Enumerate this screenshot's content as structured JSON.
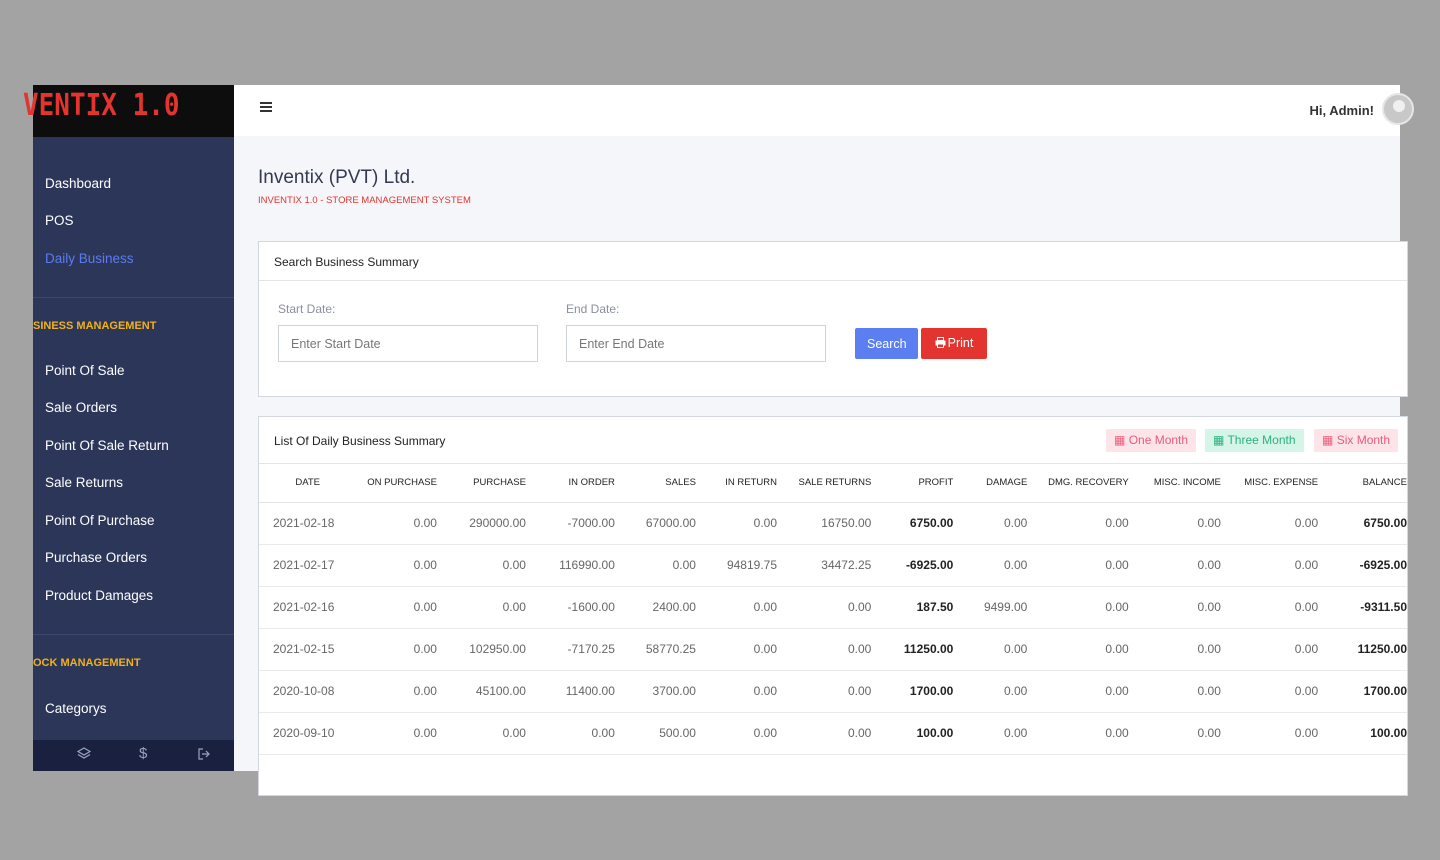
{
  "brand": "VENTIX 1.0",
  "sidebar": {
    "items": [
      {
        "label": "Dashboard"
      },
      {
        "label": "POS"
      },
      {
        "label": "Daily Business"
      }
    ],
    "section1": "SINESS MANAGEMENT",
    "business_items": [
      {
        "label": "Point Of Sale"
      },
      {
        "label": "Sale Orders"
      },
      {
        "label": "Point Of Sale Return"
      },
      {
        "label": "Sale Returns"
      },
      {
        "label": "Point Of Purchase"
      },
      {
        "label": "Purchase Orders"
      },
      {
        "label": "Product Damages"
      }
    ],
    "section2": "OCK MANAGEMENT",
    "stock_items": [
      {
        "label": "Categorys"
      }
    ],
    "footer_icons": [
      "layers-icon",
      "dollar-icon",
      "logout-icon"
    ]
  },
  "topbar": {
    "greeting": "Hi, Admin!"
  },
  "page": {
    "company": "Inventix (PVT) Ltd.",
    "subtitle": "INVENTIX 1.0 - STORE MANAGEMENT SYSTEM"
  },
  "search": {
    "title": "Search Business Summary",
    "start_label": "Start Date:",
    "start_placeholder": "Enter Start Date",
    "end_label": "End Date:",
    "end_placeholder": "Enter End Date",
    "search_button": "Search",
    "print_button": "Print"
  },
  "list": {
    "title": "List Of Daily Business Summary",
    "ranges": [
      "One Month",
      "Three Month",
      "Six Month"
    ],
    "columns": [
      "DATE",
      "ON PURCHASE",
      "PURCHASE",
      "IN ORDER",
      "SALES",
      "IN RETURN",
      "SALE RETURNS",
      "PROFIT",
      "DAMAGE",
      "DMG. RECOVERY",
      "MISC. INCOME",
      "MISC. EXPENSE",
      "BALANCE"
    ],
    "rows": [
      [
        "2021-02-18",
        "0.00",
        "290000.00",
        "-7000.00",
        "67000.00",
        "0.00",
        "16750.00",
        "6750.00",
        "0.00",
        "0.00",
        "0.00",
        "0.00",
        "6750.00"
      ],
      [
        "2021-02-17",
        "0.00",
        "0.00",
        "116990.00",
        "0.00",
        "94819.75",
        "34472.25",
        "-6925.00",
        "0.00",
        "0.00",
        "0.00",
        "0.00",
        "-6925.00"
      ],
      [
        "2021-02-16",
        "0.00",
        "0.00",
        "-1600.00",
        "2400.00",
        "0.00",
        "0.00",
        "187.50",
        "9499.00",
        "0.00",
        "0.00",
        "0.00",
        "-9311.50"
      ],
      [
        "2021-02-15",
        "0.00",
        "102950.00",
        "-7170.25",
        "58770.25",
        "0.00",
        "0.00",
        "11250.00",
        "0.00",
        "0.00",
        "0.00",
        "0.00",
        "11250.00"
      ],
      [
        "2020-10-08",
        "0.00",
        "45100.00",
        "11400.00",
        "3700.00",
        "0.00",
        "0.00",
        "1700.00",
        "0.00",
        "0.00",
        "0.00",
        "0.00",
        "1700.00"
      ],
      [
        "2020-09-10",
        "0.00",
        "0.00",
        "0.00",
        "500.00",
        "0.00",
        "0.00",
        "100.00",
        "0.00",
        "0.00",
        "0.00",
        "0.00",
        "100.00"
      ]
    ]
  },
  "colors": {
    "sidebar_bg": "#2c3659",
    "brand_red": "#e3342f",
    "section_yellow": "#f0b21b",
    "active_blue": "#5a7cf0",
    "search_blue": "#5b7ff0"
  }
}
